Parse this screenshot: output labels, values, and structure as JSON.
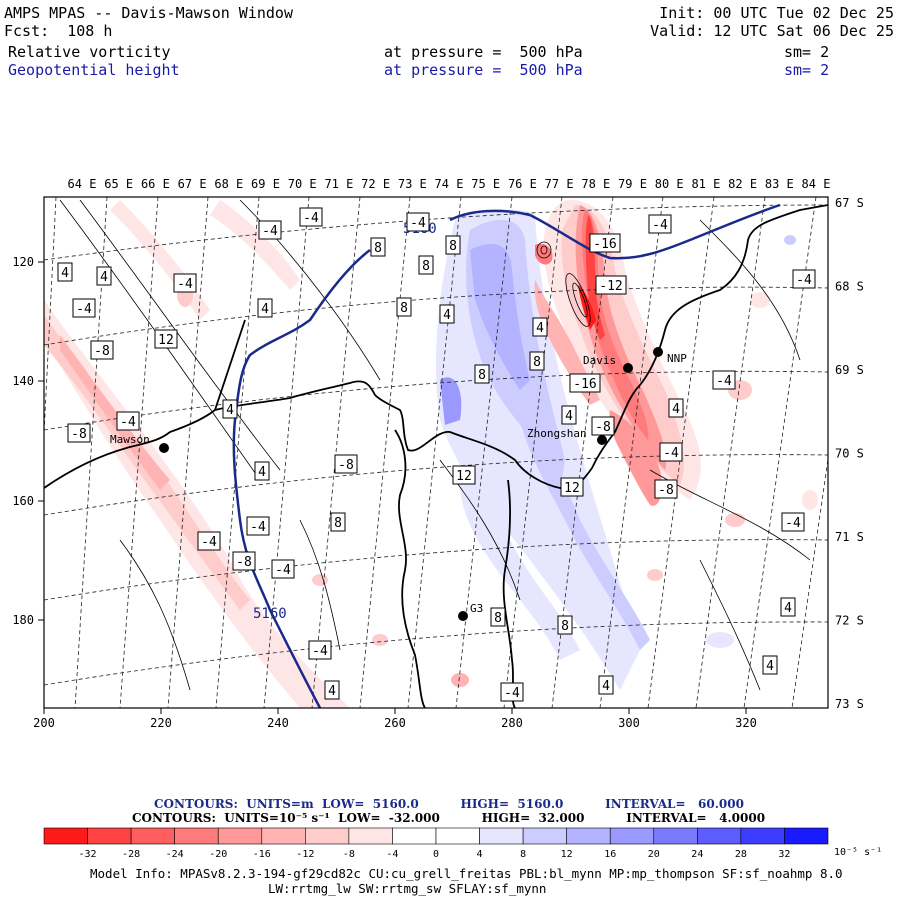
{
  "header": {
    "title": "AMPS MPAS -- Davis-Mawson Window",
    "forecast": "Fcst:  108 h",
    "init": "Init: 00 UTC Tue 02 Dec 25",
    "valid": "Valid: 12 UTC Sat 06 Dec 25",
    "fields": [
      {
        "name": "Relative vorticity",
        "level": "at pressure =  500 hPa",
        "smooth": "sm= 2",
        "color": "#000000"
      },
      {
        "name": "Geopotential height",
        "level": "at pressure =  500 hPa",
        "smooth": "sm= 2",
        "color": "#1a1aa8"
      }
    ]
  },
  "map": {
    "top_longitudes": [
      "64 E",
      "65 E",
      "66 E",
      "67 E",
      "68 E",
      "69 E",
      "70 E",
      "71 E",
      "72 E",
      "73 E",
      "74 E",
      "75 E",
      "76 E",
      "77 E",
      "78 E",
      "79 E",
      "80 E",
      "81 E",
      "82 E",
      "83 E",
      "84 E"
    ],
    "right_latitudes": [
      "67 S",
      "68 S",
      "69 S",
      "70 S",
      "71 S",
      "72 S",
      "73 S"
    ],
    "x_ticks": [
      "200",
      "220",
      "240",
      "260",
      "280",
      "300",
      "320"
    ],
    "y_ticks": [
      "120",
      "140",
      "160",
      "180"
    ],
    "stations": [
      {
        "name": "Mawson"
      },
      {
        "name": "Davis"
      },
      {
        "name": "Zhongshan"
      },
      {
        "name": "NNP"
      },
      {
        "name": "G3"
      }
    ],
    "height_contour_labels": [
      "5160",
      "5160"
    ],
    "vorticity_labels": [
      "4",
      "-4",
      "4",
      "-4",
      "-4",
      "-4",
      "8",
      "4",
      "8",
      "-4",
      "8",
      "8",
      "4",
      "12",
      "4",
      "-16",
      "-4",
      "-12",
      "8",
      "8",
      "-4",
      "-8",
      "4",
      "-4",
      "-16",
      "-8",
      "4",
      "-8",
      "-4",
      "-4",
      "12",
      "-4",
      "12",
      "-8",
      "-4",
      "-8",
      "4",
      "8",
      "-4",
      "-8",
      "-4",
      "8",
      "8",
      "4",
      "-4",
      "4",
      "-4",
      "4",
      "4",
      "4"
    ]
  },
  "colorbar": {
    "ticks": [
      "-32",
      "-28",
      "-24",
      "-20",
      "-16",
      "-12",
      "-8",
      "-4",
      "0",
      "4",
      "8",
      "12",
      "16",
      "20",
      "24",
      "28",
      "32"
    ],
    "units": "10⁻⁵ s⁻¹",
    "colors": [
      "#ff1a1a",
      "#ff4242",
      "#ff5e5e",
      "#ff7a7a",
      "#ff9999",
      "#ffb3b3",
      "#ffcccc",
      "#ffe6e6",
      "#ffffff",
      "#ffffff",
      "#e6e6ff",
      "#ccccff",
      "#b3b3ff",
      "#9999ff",
      "#7a7aff",
      "#5c5cff",
      "#3d3dff",
      "#1a1aff"
    ]
  },
  "contour_info": {
    "height_line": "CONTOURS:  UNITS=m  LOW=  5160.0          HIGH=  5160.0          INTERVAL=   60.000",
    "vort_line": "CONTOURS:  UNITS=10⁻⁵ s⁻¹  LOW=  -32.000          HIGH=  32.000          INTERVAL=   4.0000"
  },
  "model_info": {
    "line1": "Model Info: MPASv8.2.3-194-gf29cd82c CU:cu_grell_freitas PBL:bl_mynn MP:mp_thompson SF:sf_noahmp 8.0",
    "line2": "LW:rrtmg_lw SW:rrtmg_sw SFLAY:sf_mynn"
  }
}
